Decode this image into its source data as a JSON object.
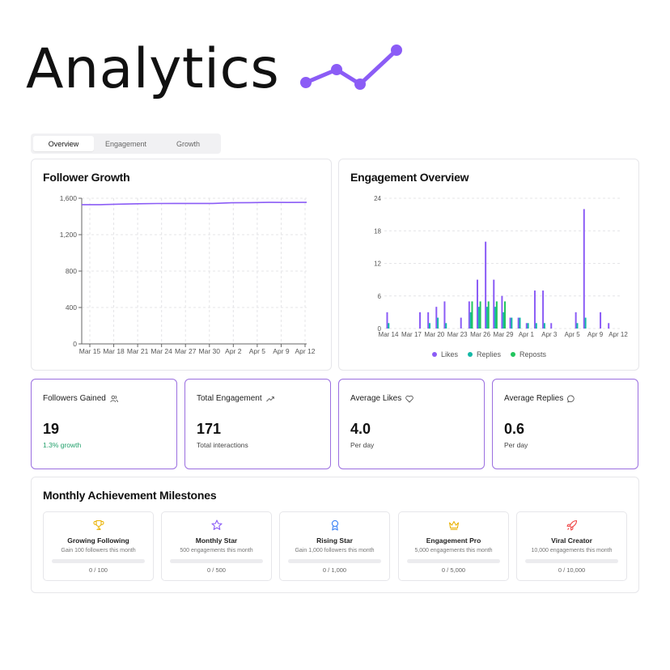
{
  "header": {
    "title": "Analytics"
  },
  "tabs": [
    {
      "label": "Overview",
      "active": true
    },
    {
      "label": "Engagement",
      "active": false
    },
    {
      "label": "Growth",
      "active": false
    }
  ],
  "follower_growth": {
    "title": "Follower Growth",
    "y_ticks": [
      "0",
      "400",
      "800",
      "1,200",
      "1,600"
    ],
    "x_ticks": [
      "Mar 15",
      "Mar 18",
      "Mar 21",
      "Mar 24",
      "Mar 27",
      "Mar 30",
      "Apr 2",
      "Apr 5",
      "Apr 9",
      "Apr 12"
    ],
    "line_color": "#8b5cf6"
  },
  "engagement_overview": {
    "title": "Engagement Overview",
    "y_ticks": [
      "0",
      "6",
      "12",
      "18",
      "24"
    ],
    "x_ticks": [
      "Mar 14",
      "Mar 17",
      "Mar 20",
      "Mar 23",
      "Mar 26",
      "Mar 29",
      "Apr 1",
      "Apr 3",
      "Apr 5",
      "Apr 9",
      "Apr 12"
    ],
    "legend": [
      {
        "name": "Likes",
        "color": "#8b5cf6"
      },
      {
        "name": "Replies",
        "color": "#14b8a6"
      },
      {
        "name": "Reposts",
        "color": "#22c55e"
      }
    ]
  },
  "chart_data": [
    {
      "type": "line",
      "title": "Follower Growth",
      "x": [
        "Mar 13",
        "Mar 15",
        "Mar 18",
        "Mar 21",
        "Mar 24",
        "Mar 27",
        "Mar 30",
        "Apr 1",
        "Apr 2",
        "Apr 5",
        "Apr 9",
        "Apr 12",
        "Apr 13"
      ],
      "y": [
        1530,
        1530,
        1535,
        1540,
        1542,
        1543,
        1543,
        1543,
        1550,
        1552,
        1555,
        1554,
        1555
      ],
      "ylim": [
        0,
        1600
      ],
      "grid": true
    },
    {
      "type": "bar",
      "title": "Engagement Overview",
      "ylim": [
        0,
        24
      ],
      "grid": true,
      "legend": "bottom",
      "series": [
        {
          "name": "Likes",
          "points": [
            [
              0,
              3
            ],
            [
              4,
              3
            ],
            [
              5,
              3
            ],
            [
              6,
              4
            ],
            [
              7,
              5
            ],
            [
              9,
              2
            ],
            [
              10,
              5
            ],
            [
              11,
              9
            ],
            [
              12,
              16
            ],
            [
              13,
              9
            ],
            [
              14,
              6
            ],
            [
              15,
              2
            ],
            [
              16,
              2
            ],
            [
              17,
              1
            ],
            [
              18,
              7
            ],
            [
              19,
              7
            ],
            [
              20,
              1
            ],
            [
              23,
              3
            ],
            [
              24,
              22
            ],
            [
              26,
              3
            ],
            [
              27,
              1
            ]
          ]
        },
        {
          "name": "Replies",
          "points": [
            [
              0,
              1
            ],
            [
              5,
              1
            ],
            [
              6,
              2
            ],
            [
              7,
              1
            ],
            [
              10,
              3
            ],
            [
              11,
              4
            ],
            [
              12,
              4
            ],
            [
              13,
              4
            ],
            [
              14,
              3
            ],
            [
              15,
              2
            ],
            [
              16,
              2
            ],
            [
              17,
              1
            ],
            [
              18,
              1
            ],
            [
              19,
              1
            ],
            [
              23,
              1
            ],
            [
              24,
              2
            ]
          ]
        },
        {
          "name": "Reposts",
          "points": [
            [
              10,
              5
            ],
            [
              11,
              5
            ],
            [
              12,
              5
            ],
            [
              13,
              5
            ],
            [
              14,
              5
            ]
          ]
        }
      ]
    }
  ],
  "stats": [
    {
      "label": "Followers Gained",
      "icon": "users-icon",
      "value": "19",
      "sub": "1.3% growth",
      "sub_color": "#22a06b"
    },
    {
      "label": "Total Engagement",
      "icon": "trending-up-icon",
      "value": "171",
      "sub": "Total interactions"
    },
    {
      "label": "Average Likes",
      "icon": "heart-icon",
      "value": "4.0",
      "sub": "Per day"
    },
    {
      "label": "Average Replies",
      "icon": "chat-bubble-icon",
      "value": "0.6",
      "sub": "Per day"
    }
  ],
  "milestones": {
    "title": "Monthly Achievement Milestones",
    "items": [
      {
        "title": "Growing Following",
        "desc": "Gain 100 followers this month",
        "progress": "0 / 100",
        "icon": "trophy-icon",
        "color": "#eab308"
      },
      {
        "title": "Monthly Star",
        "desc": "500 engagements this month",
        "progress": "0 / 500",
        "icon": "star-icon",
        "color": "#8b5cf6"
      },
      {
        "title": "Rising Star",
        "desc": "Gain 1,000 followers this month",
        "progress": "0 / 1,000",
        "icon": "award-icon",
        "color": "#3b82f6"
      },
      {
        "title": "Engagement Pro",
        "desc": "5,000 engagements this month",
        "progress": "0 / 5,000",
        "icon": "crown-icon",
        "color": "#eab308"
      },
      {
        "title": "Viral Creator",
        "desc": "10,000 engagements this month",
        "progress": "0 / 10,000",
        "icon": "rocket-icon",
        "color": "#ef4444"
      }
    ]
  }
}
